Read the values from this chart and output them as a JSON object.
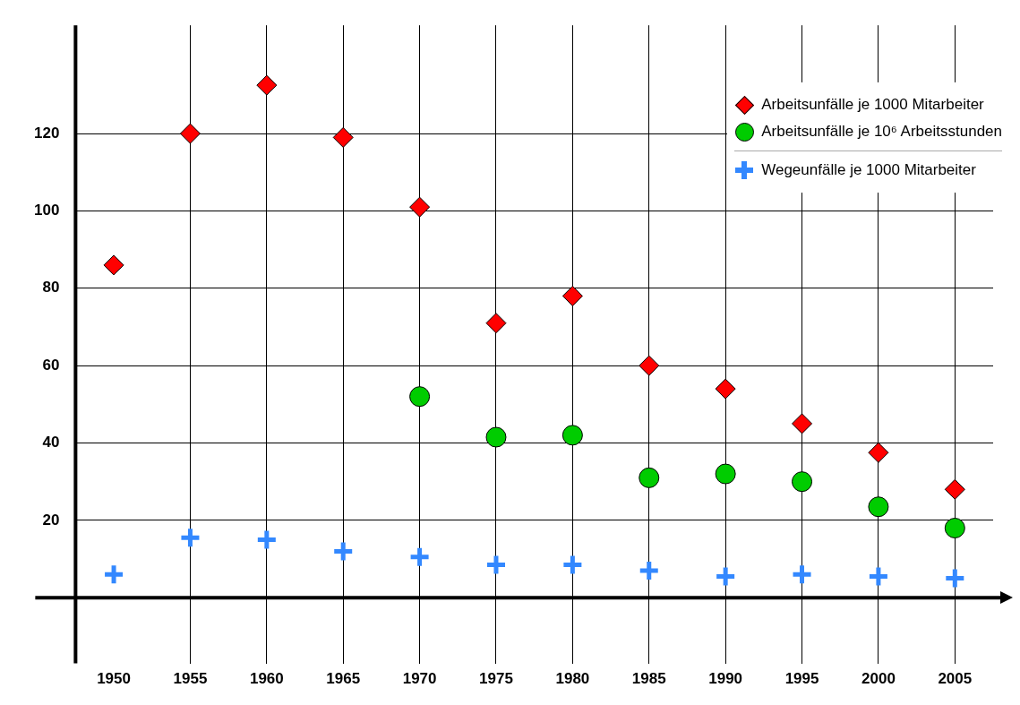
{
  "chart_data": {
    "type": "scatter",
    "categories": [
      "1950",
      "1955",
      "1960",
      "1965",
      "1970",
      "1975",
      "1980",
      "1985",
      "1990",
      "1995",
      "2000",
      "2005"
    ],
    "series": [
      {
        "name": "Arbeitsunfälle je 1000 Mitarbeiter",
        "color": "#ff0000",
        "marker": "diamond",
        "values": [
          86,
          120,
          132.5,
          119,
          101,
          71,
          78,
          60,
          54,
          45,
          37.5,
          28
        ]
      },
      {
        "name": "Arbeitsunfälle je 10⁶ Arbeitsstunden",
        "color": "#00cc00",
        "marker": "circle",
        "values": [
          null,
          null,
          null,
          null,
          52,
          41.5,
          42,
          31,
          32,
          30,
          23.5,
          18
        ]
      },
      {
        "name": "Wegeunfälle je 1000 Mitarbeiter",
        "color": "#3388ff",
        "marker": "cross",
        "values": [
          6,
          15.5,
          15,
          12,
          10.5,
          8.5,
          8.5,
          7,
          5.5,
          6,
          5.5,
          5
        ]
      }
    ],
    "ylim": [
      -17,
      148
    ],
    "yticks": [
      20,
      40,
      60,
      80,
      100,
      120
    ],
    "grid": true,
    "legend": "top right"
  }
}
